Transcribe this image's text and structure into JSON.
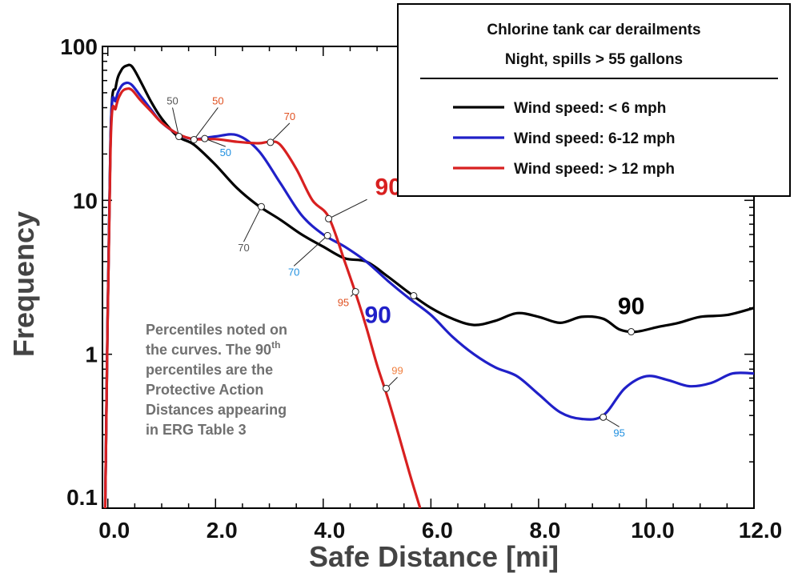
{
  "chart_data": {
    "type": "line",
    "title": "Chlorine tank car derailments",
    "subtitle": "Night, spills  > 55 gallons",
    "xlabel": "Safe Distance [mi]",
    "ylabel": "Frequency",
    "xlim": [
      -0.1,
      12.0
    ],
    "ylim": [
      0.1,
      100
    ],
    "yscale": "log",
    "x_ticks": [
      0,
      2,
      4,
      6,
      8,
      10,
      12
    ],
    "x_tick_labels": [
      "0.0",
      "2.0",
      "4.0",
      "6.0",
      "8.0",
      "10.0",
      "12.0"
    ],
    "y_ticks": [
      0.1,
      1,
      10,
      100
    ],
    "y_tick_labels": [
      "0.1",
      "1",
      "10",
      "100"
    ],
    "legend_position": "top-right",
    "note": [
      {
        "text": "Percentiles noted on"
      },
      {
        "text": "the curves. The 90",
        "sup": "th"
      },
      {
        "text": "percentiles are the"
      },
      {
        "text": "Protective Action"
      },
      {
        "text": "Distances appearing"
      },
      {
        "text": "in ERG Table 3"
      }
    ],
    "series": [
      {
        "name": "Wind speed: < 6 mph",
        "color": "#000000",
        "x": [
          -0.05,
          0.05,
          0.15,
          0.25,
          0.35,
          0.45,
          0.6,
          0.8,
          1.0,
          1.3,
          1.6,
          2.0,
          2.4,
          2.8,
          3.2,
          3.6,
          4.0,
          4.4,
          4.8,
          5.2,
          5.6,
          6.0,
          6.4,
          6.8,
          7.2,
          7.6,
          8.0,
          8.4,
          8.8,
          9.2,
          9.5,
          9.8,
          10.2,
          10.6,
          11.0,
          11.5,
          12.0
        ],
        "y": [
          0.1,
          25,
          55,
          70,
          75,
          74,
          60,
          44,
          34,
          26,
          23,
          17,
          12,
          9.2,
          7.5,
          6.0,
          5.0,
          4.2,
          4.0,
          3.2,
          2.5,
          2.0,
          1.7,
          1.55,
          1.65,
          1.85,
          1.75,
          1.6,
          1.75,
          1.7,
          1.45,
          1.4,
          1.5,
          1.6,
          1.75,
          1.8,
          2.0
        ]
      },
      {
        "name": "Wind speed: 6-12 mph",
        "color": "#2020c8",
        "x": [
          -0.05,
          0.05,
          0.15,
          0.25,
          0.35,
          0.45,
          0.6,
          0.8,
          1.0,
          1.3,
          1.6,
          2.0,
          2.4,
          2.8,
          3.2,
          3.6,
          4.0,
          4.4,
          4.8,
          5.2,
          5.6,
          6.0,
          6.4,
          6.8,
          7.2,
          7.6,
          8.0,
          8.4,
          8.8,
          9.2,
          9.6,
          10.0,
          10.4,
          10.8,
          11.2,
          11.6,
          12.0
        ],
        "y": [
          0.1,
          25,
          45,
          55,
          58,
          56,
          48,
          39,
          32,
          27,
          25,
          26,
          26.5,
          21,
          13,
          8.0,
          6.0,
          5.0,
          4.0,
          3.0,
          2.3,
          1.8,
          1.3,
          1.0,
          0.82,
          0.72,
          0.55,
          0.42,
          0.38,
          0.4,
          0.6,
          0.72,
          0.68,
          0.62,
          0.65,
          0.75,
          0.75
        ]
      },
      {
        "name": "Wind speed: > 12 mph",
        "color": "#d82020",
        "x": [
          -0.05,
          0.05,
          0.15,
          0.25,
          0.35,
          0.45,
          0.6,
          0.8,
          1.0,
          1.3,
          1.6,
          2.0,
          2.4,
          2.8,
          3.0,
          3.2,
          3.5,
          3.8,
          4.1,
          4.4,
          4.6,
          4.8,
          5.0,
          5.2,
          5.4,
          5.6,
          5.8
        ],
        "y": [
          0.1,
          22,
          40,
          50,
          53,
          52,
          45,
          38,
          32,
          27,
          25,
          25,
          24,
          23.5,
          24,
          23,
          16,
          10,
          7.8,
          4.0,
          2.5,
          1.5,
          0.85,
          0.52,
          0.3,
          0.17,
          0.1
        ]
      }
    ],
    "percentile_markers": [
      {
        "series": 0,
        "label": "50",
        "x": 1.32,
        "y": 26,
        "label_color": "#555555",
        "size": "small"
      },
      {
        "series": 0,
        "label": "70",
        "x": 2.85,
        "y": 9.1,
        "label_color": "#555555",
        "size": "small"
      },
      {
        "series": 0,
        "label": "90",
        "x": 9.72,
        "y": 1.4,
        "label_color": "#000000",
        "size": "large"
      },
      {
        "series": 1,
        "label": "50",
        "x": 1.8,
        "y": 25.2,
        "label_color": "#2090e0",
        "size": "small"
      },
      {
        "series": 1,
        "label": "70",
        "x": 4.08,
        "y": 5.9,
        "label_color": "#2090e0",
        "size": "small"
      },
      {
        "series": 1,
        "label": "90",
        "x": 5.68,
        "y": 2.4,
        "label_color": "#2020c8",
        "size": "large"
      },
      {
        "series": 1,
        "label": "95",
        "x": 9.2,
        "y": 0.39,
        "label_color": "#2090e0",
        "size": "small"
      },
      {
        "series": 2,
        "label": "50",
        "x": 1.6,
        "y": 24.8,
        "label_color": "#e05020",
        "size": "small"
      },
      {
        "series": 2,
        "label": "70",
        "x": 3.02,
        "y": 23.8,
        "label_color": "#e05020",
        "size": "small"
      },
      {
        "series": 2,
        "label": "90",
        "x": 4.1,
        "y": 7.6,
        "label_color": "#d82020",
        "size": "large"
      },
      {
        "series": 2,
        "label": "95",
        "x": 4.6,
        "y": 2.55,
        "label_color": "#e05020",
        "size": "small"
      },
      {
        "series": 2,
        "label": "99",
        "x": 5.17,
        "y": 0.6,
        "label_color": "#f08040",
        "size": "small"
      }
    ]
  }
}
